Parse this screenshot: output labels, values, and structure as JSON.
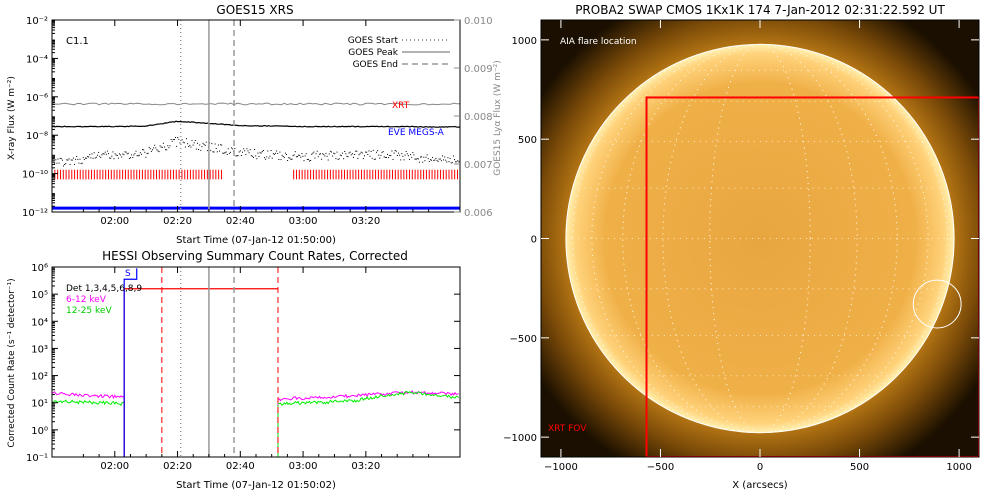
{
  "chart_data": [
    {
      "type": "line",
      "title": "GOES15 XRS",
      "xlabel": "Start Time (07-Jan-12 01:50:00)",
      "ylabel": "X-ray Flux (W m⁻²)",
      "y2label": "GOES15 Lyα Flux (W m⁻²)",
      "xlim_min": [
        -10,
        120
      ],
      "x_ticks": [
        10,
        30,
        50,
        70,
        90
      ],
      "x_tick_labels": [
        "02:00",
        "02:20",
        "02:40",
        "03:00",
        "03:20"
      ],
      "y_scale": "log",
      "ylim_exp": [
        -12,
        -2
      ],
      "y_tick_exps": [
        -12,
        -10,
        -8,
        -6,
        -4,
        -2
      ],
      "y_tick_labels": [
        "10⁻¹²",
        "10⁻¹⁰",
        "10⁻⁸",
        "10⁻⁶",
        "10⁻⁴",
        "10⁻²"
      ],
      "y2lim": [
        0.006,
        0.01
      ],
      "y2_ticks": [
        0.006,
        0.007,
        0.008,
        0.009,
        0.01
      ],
      "y2_tick_labels": [
        "0.006",
        "0.007",
        "0.008",
        "0.009",
        "0.010"
      ],
      "flare_class": "C1.1",
      "legend": {
        "entries": [
          {
            "label": "GOES Start",
            "style": "dotted"
          },
          {
            "label": "GOES Peak",
            "style": "solid"
          },
          {
            "label": "GOES End",
            "style": "dashed"
          }
        ],
        "placement": "top-right"
      },
      "markers": {
        "start": 31,
        "peak": 40,
        "end": 48
      },
      "annotations": {
        "xrt": "XRT",
        "eve": "EVE MEGS-A"
      },
      "series": [
        {
          "role": "long",
          "color": "#000000",
          "x": [
            -10,
            0,
            10,
            20,
            30,
            40,
            50,
            60,
            70,
            80,
            90,
            100,
            110,
            120
          ],
          "y_exp": [
            -7.55,
            -7.55,
            -7.55,
            -7.52,
            -7.28,
            -7.38,
            -7.5,
            -7.52,
            -7.55,
            -7.55,
            -7.55,
            -7.55,
            -7.57,
            -7.57
          ]
        },
        {
          "role": "lyman",
          "color": "#888888",
          "x": [
            -10,
            120
          ],
          "y": [
            0.00825,
            0.00825
          ]
        },
        {
          "role": "short",
          "color": "#000000",
          "x": [
            -10,
            0,
            10,
            20,
            30,
            40,
            50,
            60,
            70,
            80,
            90,
            100,
            110,
            120
          ],
          "y_exp": [
            -9.4,
            -9.2,
            -9.0,
            -8.9,
            -8.3,
            -8.6,
            -8.9,
            -9.0,
            -9.1,
            -9.0,
            -9.0,
            -9.0,
            -9.2,
            -9.3
          ]
        },
        {
          "role": "eve",
          "color": "#0000ff",
          "x": [
            -10,
            120
          ],
          "y_exp": [
            -11.8,
            -11.8
          ]
        }
      ],
      "xrt_coverage": [
        [
          -10,
          44
        ],
        [
          67,
          120
        ]
      ]
    },
    {
      "type": "line",
      "title": "HESSI Observing Summary Count Rates, Corrected",
      "xlabel": "Start Time (07-Jan-12 01:50:02)",
      "ylabel": "Corrected Count Rate (s⁻¹ detector⁻¹)",
      "xlim_min": [
        -10,
        120
      ],
      "x_ticks": [
        10,
        30,
        50,
        70,
        90
      ],
      "x_tick_labels": [
        "02:00",
        "02:20",
        "02:40",
        "03:00",
        "03:20"
      ],
      "y_scale": "log",
      "ylim_exp": [
        -1,
        6
      ],
      "y_tick_exps": [
        -1,
        0,
        1,
        2,
        3,
        4,
        5,
        6
      ],
      "y_tick_labels": [
        "10⁻¹",
        "10⁰",
        "10¹",
        "10²",
        "10³",
        "10⁴",
        "10⁵",
        "10⁶"
      ],
      "legend": {
        "entries": [
          {
            "label": "Det 1,3,4,5,6,8,9",
            "color": "#000000"
          },
          {
            "label": "6-12 keV",
            "color": "#ff00ff"
          },
          {
            "label": "12-25 keV",
            "color": "#00ee00"
          }
        ],
        "placement": "top-left"
      },
      "markers": {
        "start": 31,
        "peak": 40,
        "end": 48
      },
      "red_markers": [
        25,
        62
      ],
      "red_plateau_exp": 5.2,
      "s_marker": "S",
      "series": [
        {
          "name": "6-12 keV",
          "color": "#ff00ff",
          "x": [
            -10,
            0,
            10,
            13,
            62,
            65,
            75,
            85,
            95,
            105,
            115,
            120
          ],
          "y_exp": [
            1.35,
            1.28,
            1.22,
            1.2,
            1.12,
            1.15,
            1.2,
            1.25,
            1.32,
            1.38,
            1.35,
            1.32
          ]
        },
        {
          "name": "12-25 keV",
          "color": "#00ee00",
          "x": [
            -10,
            0,
            10,
            13,
            62,
            65,
            75,
            85,
            95,
            105,
            115,
            120
          ],
          "y_exp": [
            1.05,
            1.02,
            0.98,
            0.95,
            0.92,
            0.98,
            1.02,
            1.05,
            1.25,
            1.38,
            1.25,
            1.18
          ]
        }
      ],
      "gap": [
        13,
        62
      ]
    },
    {
      "type": "heatmap",
      "title": "PROBA2 SWAP CMOS 1Kx1K 174  7-Jan-2012 02:31:22.592 UT",
      "xlabel": "X (arcsecs)",
      "xlim": [
        -1100,
        1100
      ],
      "ylim": [
        -1100,
        1100
      ],
      "x_ticks": [
        -1000,
        -500,
        0,
        500,
        1000
      ],
      "y_ticks": [
        -1000,
        -500,
        0,
        500,
        1000
      ],
      "x_tick_labels": [
        "−1000",
        "−500",
        "0",
        "500",
        "1000"
      ],
      "y_tick_labels": [
        "−1000",
        "−500",
        "0",
        "500",
        "1000"
      ],
      "solar_radius": 975,
      "aia_circle": {
        "x": 890,
        "y": -330,
        "r": 120
      },
      "xrt_fov": {
        "x_min": -570,
        "x_max": 1100,
        "y_min": -1100,
        "y_max": 710
      },
      "annotations": {
        "aia": "AIA flare location",
        "xrt_fov": "XRT FOV"
      },
      "colors": {
        "disk": "#f0b048",
        "limb": "#ffe08a",
        "corona": "#b07010",
        "background": "#1a0f00",
        "fov": "#ff0000"
      }
    }
  ]
}
